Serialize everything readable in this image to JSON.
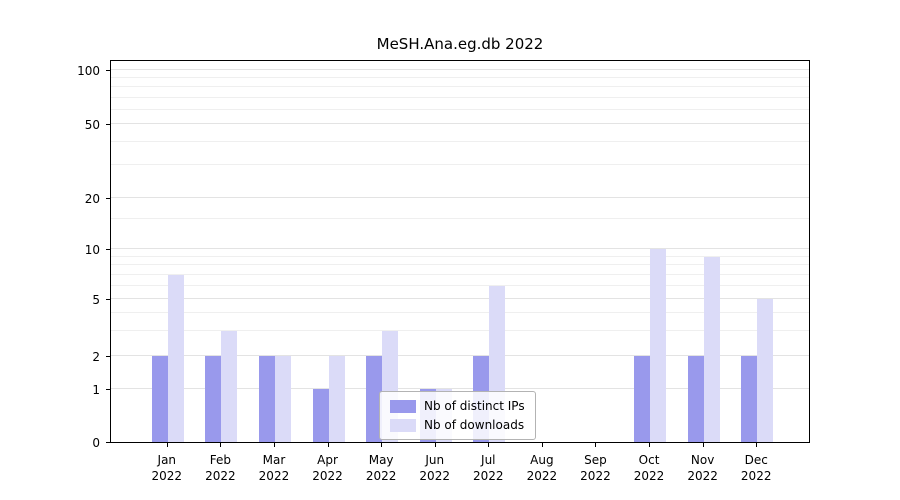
{
  "title": "MeSH.Ana.eg.db 2022",
  "chart_data": {
    "type": "bar",
    "title": "MeSH.Ana.eg.db 2022",
    "xlabel": "",
    "ylabel": "",
    "year": "2022",
    "categories": [
      "Jan",
      "Feb",
      "Mar",
      "Apr",
      "May",
      "Jun",
      "Jul",
      "Aug",
      "Sep",
      "Oct",
      "Nov",
      "Dec"
    ],
    "series": [
      {
        "name": "Nb of distinct IPs",
        "color": "#9999ec",
        "values": [
          2,
          2,
          2,
          1,
          2,
          1,
          2,
          0,
          0,
          2,
          2,
          2
        ]
      },
      {
        "name": "Nb of downloads",
        "color": "#dbdbf8",
        "values": [
          7,
          3,
          2,
          2,
          3,
          1,
          6,
          0,
          0,
          10,
          9,
          5
        ]
      }
    ],
    "yticks": [
      0,
      1,
      2,
      5,
      10,
      20,
      50,
      100
    ],
    "minor_gridlines": [
      3,
      4,
      6,
      7,
      8,
      9,
      15,
      30,
      40,
      60,
      70,
      80,
      90
    ],
    "scale": "log-like",
    "grid": true,
    "legend_position": "lower center"
  }
}
